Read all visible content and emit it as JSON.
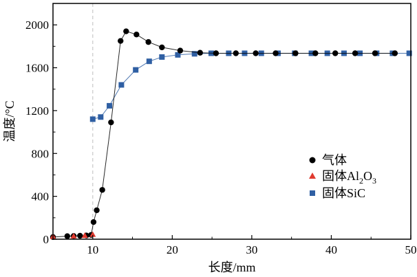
{
  "chart_data": {
    "type": "line",
    "xlabel": "长度/mm",
    "ylabel": "温度/°C",
    "xlim": [
      5,
      50
    ],
    "ylim": [
      0,
      2200
    ],
    "x_ticks": [
      "10",
      "20",
      "30",
      "40",
      "50"
    ],
    "y_ticks": [
      "0",
      "400",
      "800",
      "1200",
      "1600",
      "2000"
    ],
    "reference_line_x": 10,
    "legend_position": "right",
    "series": [
      {
        "name": "气体",
        "marker": "circle",
        "color": "#000000",
        "x": [
          5,
          6.8,
          7.6,
          8.4,
          9.2,
          9.8,
          10.1,
          10.5,
          11.2,
          12.3,
          13.5,
          14.2,
          15.5,
          17,
          18.7,
          21,
          23.5,
          25.5,
          28,
          30.5,
          33,
          35.5,
          38,
          40.5,
          43,
          45.5,
          48
        ],
        "y": [
          20,
          28,
          30,
          32,
          35,
          40,
          160,
          270,
          460,
          1090,
          1850,
          1940,
          1910,
          1840,
          1790,
          1760,
          1740,
          1735,
          1735,
          1735,
          1735,
          1735,
          1735,
          1735,
          1735,
          1735,
          1735
        ]
      },
      {
        "name": "固体Al₂O₃",
        "legend_parts": {
          "a": "固体Al",
          "b": "2",
          "c": "O",
          "d": "3"
        },
        "marker": "triangle",
        "color": "#e03a2f",
        "x": [
          5,
          7.6,
          9,
          10
        ],
        "y": [
          25,
          30,
          35,
          45
        ]
      },
      {
        "name": "固体SiC",
        "marker": "square",
        "color": "#2f5fa3",
        "x": [
          10,
          11,
          12.1,
          13.6,
          15.4,
          17.1,
          18.7,
          20.7,
          22.8,
          24.9,
          27.1,
          29.1,
          31.2,
          33.3,
          35.4,
          37.5,
          39.5,
          41.6,
          43.6,
          45.7,
          47.7,
          49.8
        ],
        "y": [
          1120,
          1140,
          1245,
          1440,
          1580,
          1660,
          1700,
          1720,
          1730,
          1735,
          1735,
          1735,
          1735,
          1735,
          1735,
          1735,
          1735,
          1735,
          1735,
          1735,
          1735,
          1735
        ]
      }
    ]
  }
}
